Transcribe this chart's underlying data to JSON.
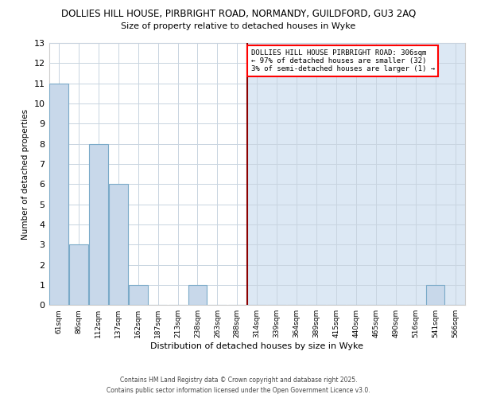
{
  "title": "DOLLIES HILL HOUSE, PIRBRIGHT ROAD, NORMANDY, GUILDFORD, GU3 2AQ",
  "subtitle": "Size of property relative to detached houses in Wyke",
  "xlabel": "Distribution of detached houses by size in Wyke",
  "ylabel": "Number of detached properties",
  "bar_color": "#c8d8ea",
  "bar_edge_color": "#7aaac8",
  "highlight_bg_color": "#dce8f4",
  "bin_labels": [
    "61sqm",
    "86sqm",
    "112sqm",
    "137sqm",
    "162sqm",
    "187sqm",
    "213sqm",
    "238sqm",
    "263sqm",
    "288sqm",
    "314sqm",
    "339sqm",
    "364sqm",
    "389sqm",
    "415sqm",
    "440sqm",
    "465sqm",
    "490sqm",
    "516sqm",
    "541sqm",
    "566sqm"
  ],
  "bar_heights": [
    11,
    3,
    8,
    6,
    1,
    0,
    0,
    1,
    0,
    0,
    0,
    0,
    0,
    0,
    0,
    0,
    0,
    0,
    0,
    1,
    0
  ],
  "ylim": [
    0,
    13
  ],
  "yticks": [
    0,
    1,
    2,
    3,
    4,
    5,
    6,
    7,
    8,
    9,
    10,
    11,
    12,
    13
  ],
  "red_line_index": 10,
  "annotation_title": "DOLLIES HILL HOUSE PIRBRIGHT ROAD: 306sqm",
  "annotation_line2": "← 97% of detached houses are smaller (32)",
  "annotation_line3": "3% of semi-detached houses are larger (1) →",
  "footer_line1": "Contains HM Land Registry data © Crown copyright and database right 2025.",
  "footer_line2": "Contains public sector information licensed under the Open Government Licence v3.0.",
  "background_color": "#ffffff",
  "grid_color": "#c8d4e0",
  "red_line_color": "#8b0000"
}
